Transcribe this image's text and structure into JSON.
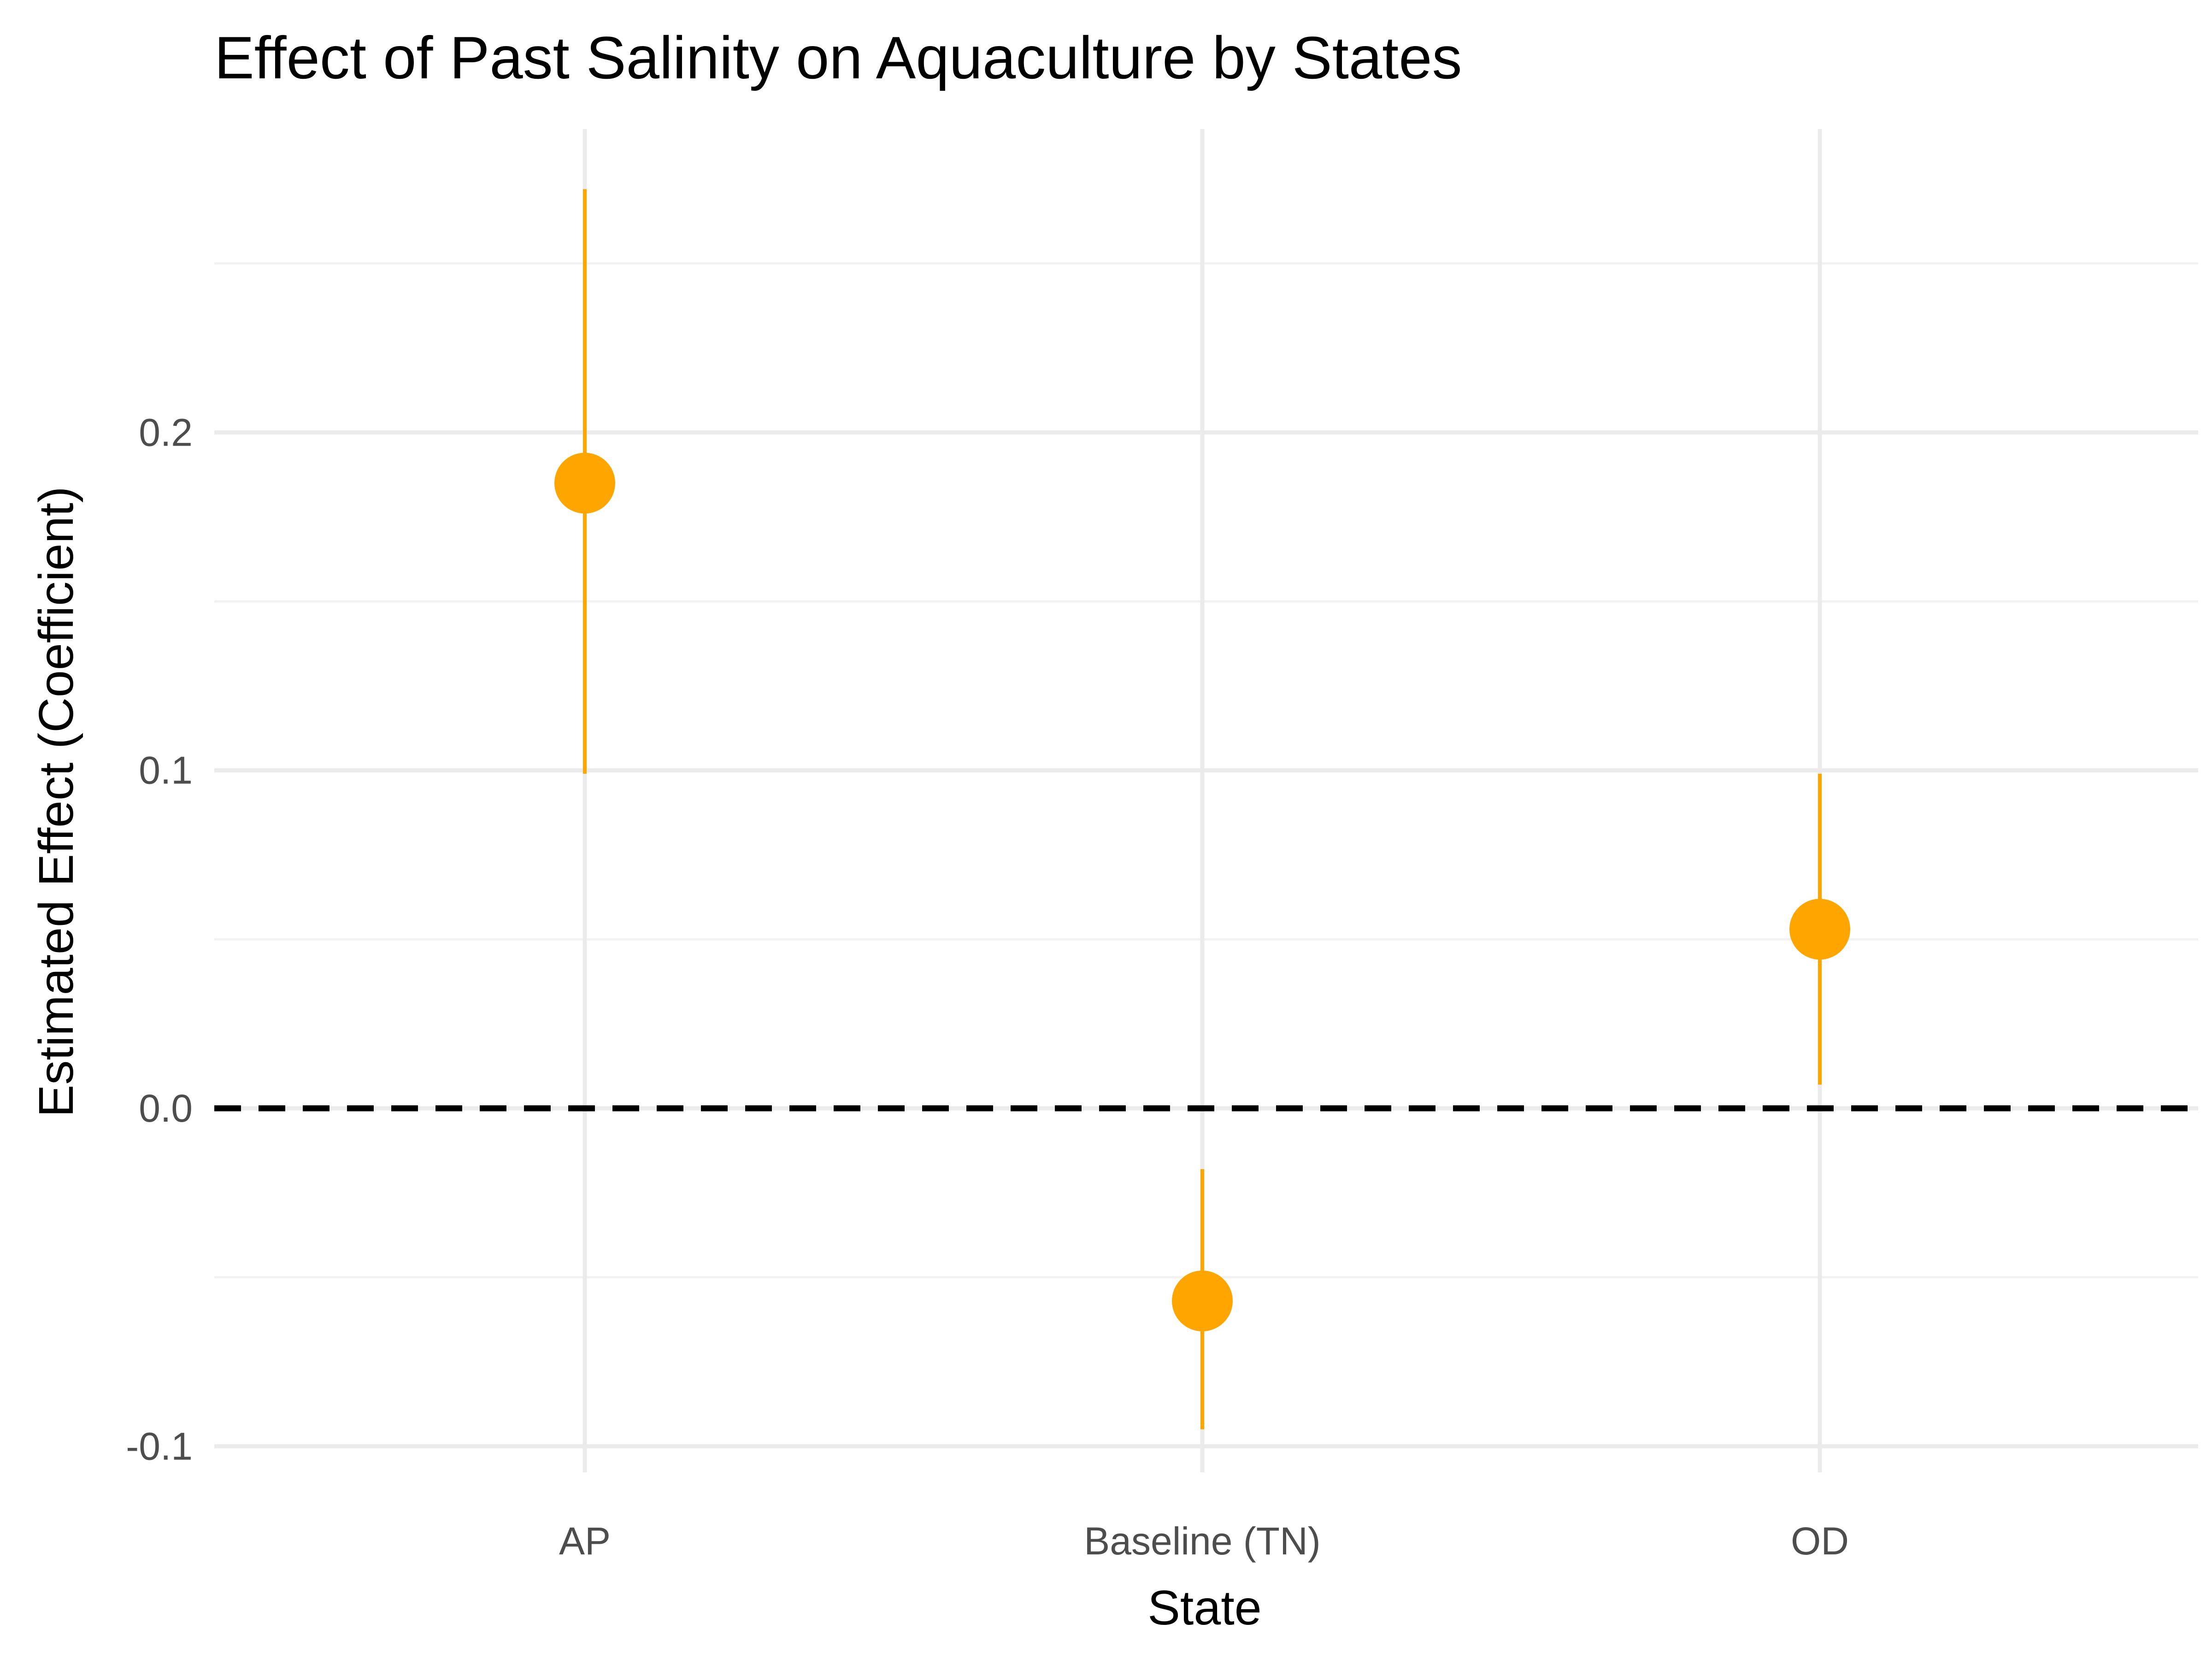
{
  "chart_data": {
    "type": "pointrange",
    "title": "Effect of Past Salinity on Aquaculture by States",
    "xlabel": "State",
    "ylabel": "Estimated Effect (Coefficient)",
    "categories": [
      "AP",
      "Baseline (TN)",
      "OD"
    ],
    "estimates": [
      0.185,
      -0.057,
      0.053
    ],
    "ci_lower": [
      0.099,
      -0.095,
      0.007
    ],
    "ci_upper": [
      0.272,
      -0.018,
      0.099
    ],
    "ylim": [
      -0.105,
      0.29
    ],
    "yticks": [
      -0.1,
      0.0,
      0.1,
      0.2
    ],
    "ytick_labels": [
      "-0.1",
      "0.0",
      "0.1",
      "0.2"
    ],
    "minor_yticks": [
      -0.05,
      0.05,
      0.15,
      0.25
    ],
    "reference_line": {
      "y": 0.0,
      "style": "dashed"
    },
    "grid": true,
    "colors": {
      "point": "#FFA500",
      "errorbar": "#FFA500",
      "reference_line": "#000000",
      "grid_major": "#ebebeb",
      "grid_minor": "#f2f2f2"
    }
  }
}
